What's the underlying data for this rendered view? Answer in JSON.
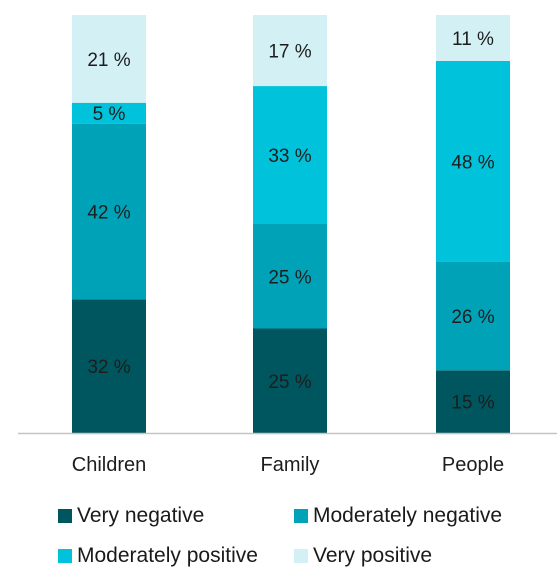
{
  "chart_data": {
    "type": "bar",
    "stacked": true,
    "categories": [
      "Children",
      "Family",
      "People"
    ],
    "ylim": [
      0,
      100
    ],
    "series": [
      {
        "name": "Very negative",
        "color": "#00565e",
        "values": [
          32,
          25,
          15
        ],
        "labels": [
          "32 %",
          "25 %",
          "15 %"
        ]
      },
      {
        "name": "Moderately negative",
        "color": "#00a2b8",
        "values": [
          42,
          25,
          26
        ],
        "labels": [
          "42 %",
          "25 %",
          "26 %"
        ]
      },
      {
        "name": "Moderately positive",
        "color": "#00c2da",
        "values": [
          5,
          33,
          48
        ],
        "labels": [
          "5 %",
          "33 %",
          "48 %"
        ]
      },
      {
        "name": "Very positive",
        "color": "#d3f0f5",
        "values": [
          21,
          17,
          11
        ],
        "labels": [
          "21 %",
          "17 %",
          "11 %"
        ]
      }
    ],
    "legend_position": "bottom"
  }
}
